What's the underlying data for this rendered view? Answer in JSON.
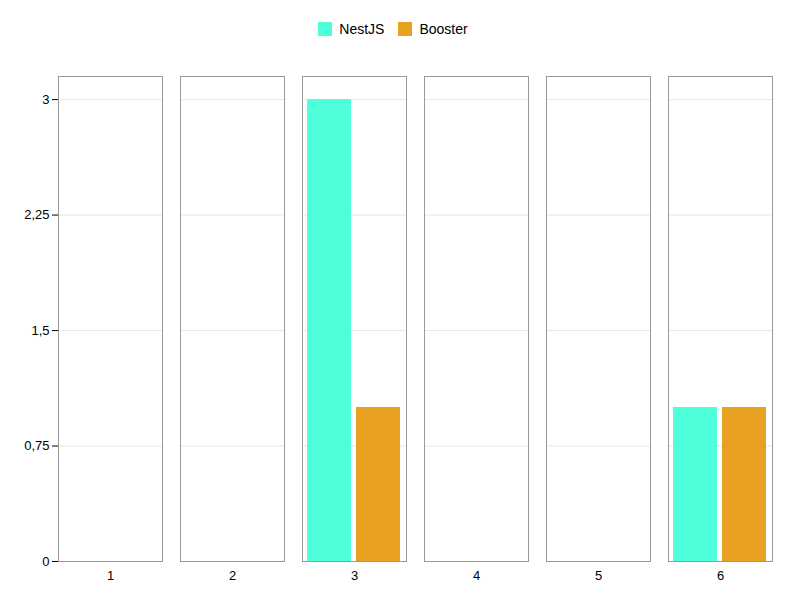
{
  "chart_data": {
    "type": "bar",
    "categories": [
      "1",
      "2",
      "3",
      "4",
      "5",
      "6"
    ],
    "series": [
      {
        "name": "NestJS",
        "color": "#4EFFD9",
        "values": [
          0,
          0,
          3,
          0,
          0,
          1
        ]
      },
      {
        "name": "Booster",
        "color": "#E8A020",
        "values": [
          0,
          0,
          1,
          0,
          0,
          1
        ]
      }
    ],
    "ylim": [
      0,
      3.15
    ],
    "yticks": [
      0,
      {
        "value": 0.75,
        "label": "0,75"
      },
      {
        "value": 1.5,
        "label": "1,5"
      },
      {
        "value": 2.25,
        "label": "2,25"
      },
      3
    ],
    "grid": true,
    "legend": "upper center"
  }
}
